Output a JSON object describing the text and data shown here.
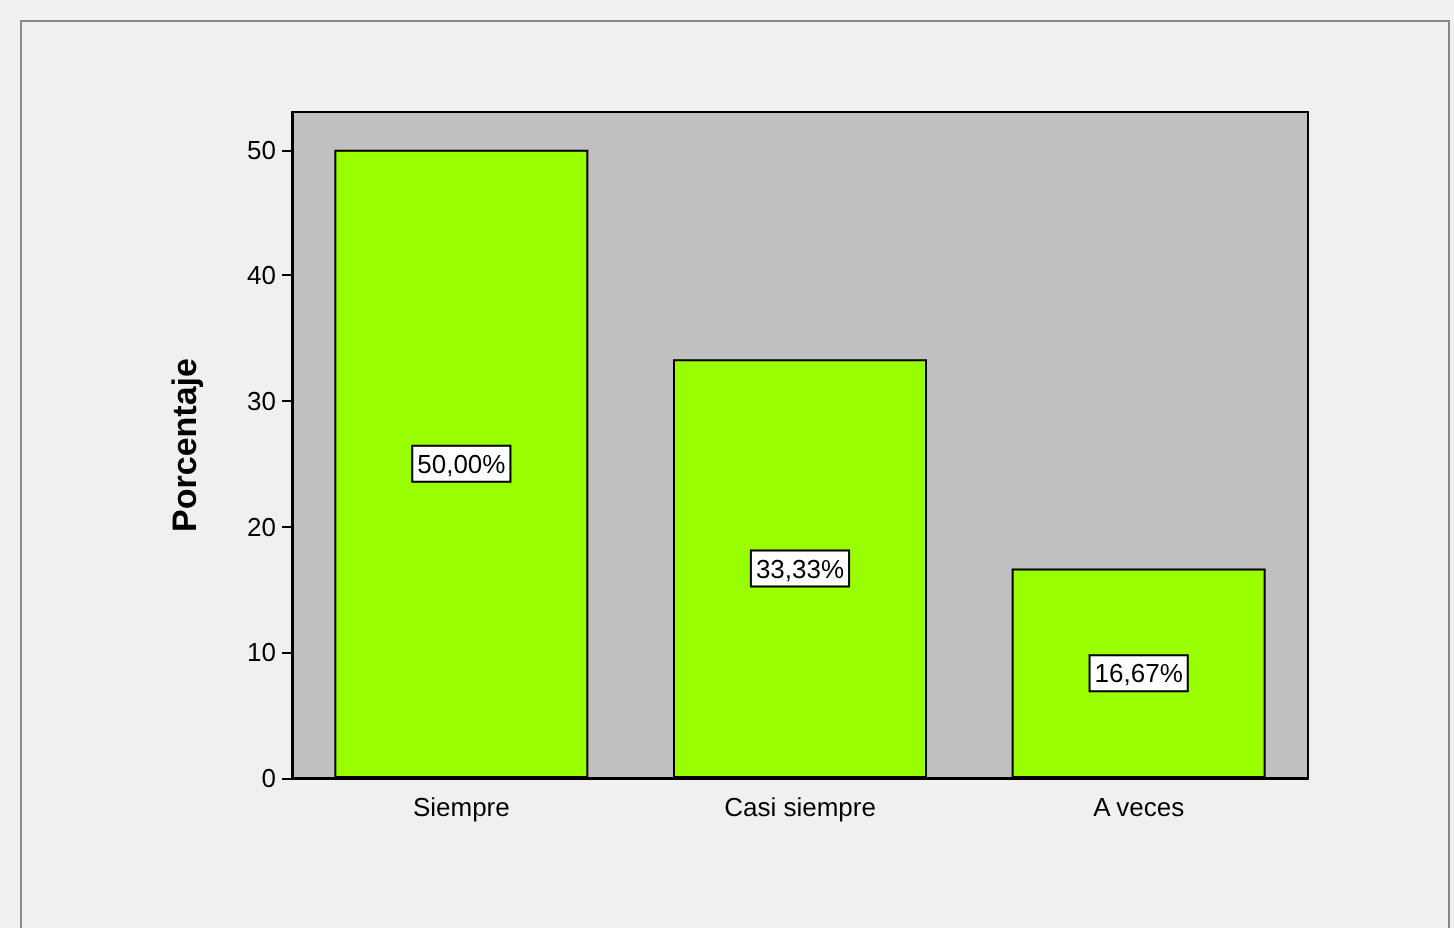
{
  "chart_data": {
    "type": "bar",
    "ylabel": "Porcentaje",
    "categories": [
      "Siempre",
      "Casi siempre",
      "A veces"
    ],
    "values": [
      50,
      33.33,
      16.67
    ],
    "value_labels": [
      "50,00%",
      "33,33%",
      "16,67%"
    ],
    "color": "#99ff00",
    "ylim": [
      0,
      53
    ],
    "yticks": [
      0,
      10,
      20,
      30,
      40,
      50
    ],
    "grid": false
  }
}
